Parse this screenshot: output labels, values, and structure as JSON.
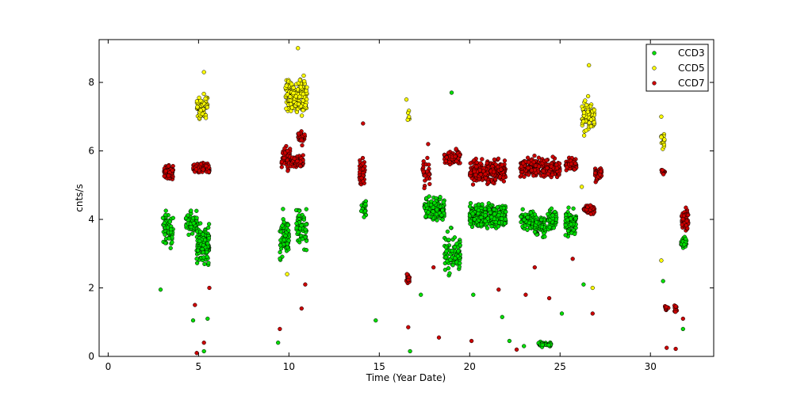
{
  "chart_data": {
    "type": "scatter",
    "title": "",
    "xlabel": "Time (Year Date)",
    "ylabel": "cnts/s",
    "xlim": [
      -0.5,
      33.5
    ],
    "ylim": [
      0,
      9.25
    ],
    "xticks": [
      0,
      5,
      10,
      15,
      20,
      25,
      30
    ],
    "yticks": [
      0,
      2,
      4,
      6,
      8
    ],
    "grid": false,
    "legend_position": "top-right",
    "series": [
      {
        "name": "CCD3",
        "color": "#00dd00",
        "clusters": [
          {
            "x_range": [
              3.0,
              3.6
            ],
            "y_center": 3.7,
            "y_spread": 0.8,
            "n": 60
          },
          {
            "x_range": [
              4.3,
              4.9
            ],
            "y_center": 3.9,
            "y_spread": 0.5,
            "n": 60
          },
          {
            "x_range": [
              4.9,
              5.6
            ],
            "y_center": 3.3,
            "y_spread": 0.9,
            "n": 110
          },
          {
            "x_range": [
              9.5,
              10.0
            ],
            "y_center": 3.5,
            "y_spread": 1.0,
            "n": 70
          },
          {
            "x_range": [
              10.4,
              11.0
            ],
            "y_center": 3.8,
            "y_spread": 0.9,
            "n": 60
          },
          {
            "x_range": [
              14.0,
              14.3
            ],
            "y_center": 4.3,
            "y_spread": 0.5,
            "n": 18
          },
          {
            "x_range": [
              17.5,
              18.6
            ],
            "y_center": 4.3,
            "y_spread": 0.5,
            "n": 140
          },
          {
            "x_range": [
              18.6,
              19.5
            ],
            "y_center": 3.0,
            "y_spread": 1.0,
            "n": 90
          },
          {
            "x_range": [
              20.0,
              22.0
            ],
            "y_center": 4.1,
            "y_spread": 0.5,
            "n": 320
          },
          {
            "x_range": [
              22.8,
              23.5
            ],
            "y_center": 4.0,
            "y_spread": 0.5,
            "n": 70
          },
          {
            "x_range": [
              23.6,
              24.2
            ],
            "y_center": 3.8,
            "y_spread": 0.5,
            "n": 70
          },
          {
            "x_range": [
              24.3,
              24.8
            ],
            "y_center": 4.0,
            "y_spread": 0.5,
            "n": 60
          },
          {
            "x_range": [
              25.3,
              25.9
            ],
            "y_center": 3.9,
            "y_spread": 0.5,
            "n": 90
          },
          {
            "x_range": [
              23.8,
              24.5
            ],
            "y_center": 0.35,
            "y_spread": 0.1,
            "n": 40
          },
          {
            "x_range": [
              31.7,
              32.0
            ],
            "y_center": 3.3,
            "y_spread": 0.3,
            "n": 30
          }
        ],
        "scatter_points": [
          [
            2.9,
            1.95
          ],
          [
            5.3,
            0.15
          ],
          [
            5.5,
            1.1
          ],
          [
            4.7,
            1.05
          ],
          [
            9.4,
            0.4
          ],
          [
            14.8,
            1.05
          ],
          [
            16.7,
            0.15
          ],
          [
            19.0,
            7.7
          ],
          [
            21.8,
            1.15
          ],
          [
            22.2,
            0.45
          ],
          [
            23.0,
            0.3
          ],
          [
            25.1,
            1.25
          ],
          [
            26.3,
            2.1
          ],
          [
            30.7,
            2.2
          ],
          [
            31.8,
            0.8
          ],
          [
            17.3,
            1.8
          ],
          [
            20.2,
            1.8
          ]
        ]
      },
      {
        "name": "CCD5",
        "color": "#ffff00",
        "clusters": [
          {
            "x_range": [
              4.9,
              5.5
            ],
            "y_center": 7.3,
            "y_spread": 0.5,
            "n": 70
          },
          {
            "x_range": [
              9.8,
              11.0
            ],
            "y_center": 7.6,
            "y_spread": 0.8,
            "n": 190
          },
          {
            "x_range": [
              26.2,
              26.9
            ],
            "y_center": 7.0,
            "y_spread": 0.7,
            "n": 80
          },
          {
            "x_range": [
              30.6,
              30.8
            ],
            "y_center": 6.3,
            "y_spread": 0.4,
            "n": 18
          },
          {
            "x_range": [
              16.5,
              16.7
            ],
            "y_center": 7.0,
            "y_spread": 0.2,
            "n": 6
          }
        ],
        "scatter_points": [
          [
            5.3,
            8.3
          ],
          [
            10.5,
            9.0
          ],
          [
            26.6,
            8.5
          ],
          [
            30.6,
            7.0
          ],
          [
            16.5,
            7.5
          ],
          [
            26.8,
            2.0
          ],
          [
            9.9,
            2.4
          ],
          [
            30.6,
            2.8
          ],
          [
            26.2,
            4.95
          ]
        ]
      },
      {
        "name": "CCD7",
        "color": "#cc0000",
        "clusters": [
          {
            "x_range": [
              3.1,
              3.6
            ],
            "y_center": 5.4,
            "y_spread": 0.3,
            "n": 60
          },
          {
            "x_range": [
              4.7,
              5.6
            ],
            "y_center": 5.5,
            "y_spread": 0.25,
            "n": 110
          },
          {
            "x_range": [
              9.6,
              10.1
            ],
            "y_center": 5.8,
            "y_spread": 0.5,
            "n": 60
          },
          {
            "x_range": [
              10.1,
              10.8
            ],
            "y_center": 5.7,
            "y_spread": 0.25,
            "n": 80
          },
          {
            "x_range": [
              10.5,
              10.9
            ],
            "y_center": 6.4,
            "y_spread": 0.35,
            "n": 30
          },
          {
            "x_range": [
              13.9,
              14.2
            ],
            "y_center": 5.4,
            "y_spread": 0.7,
            "n": 40
          },
          {
            "x_range": [
              16.5,
              16.7
            ],
            "y_center": 2.3,
            "y_spread": 0.2,
            "n": 15
          },
          {
            "x_range": [
              17.4,
              17.8
            ],
            "y_center": 5.3,
            "y_spread": 0.6,
            "n": 30
          },
          {
            "x_range": [
              18.6,
              19.5
            ],
            "y_center": 5.8,
            "y_spread": 0.3,
            "n": 90
          },
          {
            "x_range": [
              20.0,
              22.0
            ],
            "y_center": 5.4,
            "y_spread": 0.55,
            "n": 260
          },
          {
            "x_range": [
              22.8,
              25.0
            ],
            "y_center": 5.5,
            "y_spread": 0.4,
            "n": 230
          },
          {
            "x_range": [
              25.3,
              25.9
            ],
            "y_center": 5.6,
            "y_spread": 0.3,
            "n": 50
          },
          {
            "x_range": [
              26.3,
              26.9
            ],
            "y_center": 4.3,
            "y_spread": 0.2,
            "n": 60
          },
          {
            "x_range": [
              26.9,
              27.3
            ],
            "y_center": 5.3,
            "y_spread": 0.3,
            "n": 50
          },
          {
            "x_range": [
              30.6,
              30.8
            ],
            "y_center": 5.4,
            "y_spread": 0.1,
            "n": 12
          },
          {
            "x_range": [
              30.8,
              31.0
            ],
            "y_center": 1.4,
            "y_spread": 0.15,
            "n": 14
          },
          {
            "x_range": [
              31.3,
              31.5
            ],
            "y_center": 1.4,
            "y_spread": 0.15,
            "n": 14
          },
          {
            "x_range": [
              31.7,
              32.1
            ],
            "y_center": 4.0,
            "y_spread": 0.5,
            "n": 55
          }
        ],
        "scatter_points": [
          [
            9.5,
            0.8
          ],
          [
            4.9,
            0.1
          ],
          [
            5.3,
            0.4
          ],
          [
            5.6,
            2.0
          ],
          [
            4.8,
            1.5
          ],
          [
            14.1,
            6.8
          ],
          [
            16.6,
            0.85
          ],
          [
            18.3,
            0.55
          ],
          [
            20.1,
            0.45
          ],
          [
            21.6,
            1.95
          ],
          [
            23.1,
            1.8
          ],
          [
            23.6,
            2.6
          ],
          [
            24.4,
            1.7
          ],
          [
            25.7,
            2.85
          ],
          [
            26.8,
            1.25
          ],
          [
            30.9,
            0.25
          ],
          [
            31.4,
            0.22
          ],
          [
            31.8,
            1.1
          ],
          [
            10.7,
            1.4
          ],
          [
            10.9,
            2.1
          ],
          [
            18.0,
            2.6
          ],
          [
            22.6,
            0.2
          ],
          [
            17.7,
            6.2
          ]
        ]
      }
    ]
  }
}
